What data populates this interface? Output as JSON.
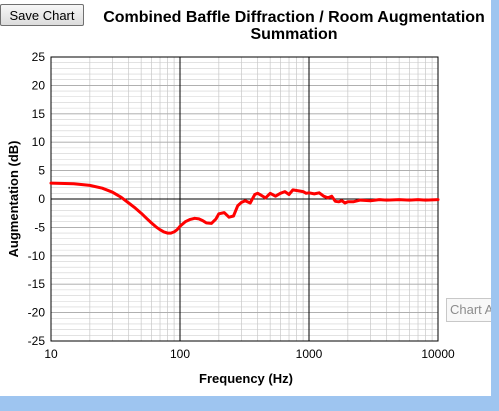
{
  "toolbar": {
    "save_label": "Save Chart"
  },
  "tooltip": {
    "text": "Chart A"
  },
  "chart_data": {
    "type": "line",
    "title_lines": [
      "Combined Baffle Diffraction / Room Augmentation",
      "Summation"
    ],
    "xlabel": "Frequency (Hz)",
    "ylabel": "Augmentation (dB)",
    "xscale": "log",
    "xlim": [
      10,
      10000
    ],
    "ylim": [
      -25,
      25
    ],
    "grid": true,
    "x_ticks": [
      "10",
      "100",
      "1000",
      "10000"
    ],
    "y_ticks": [
      "25",
      "20",
      "15",
      "10",
      "5",
      "0",
      "-5",
      "-10",
      "-15",
      "-20",
      "-25"
    ],
    "series": [
      {
        "color": "#ff0000",
        "x": [
          10,
          15,
          20,
          25,
          30,
          35,
          40,
          45,
          50,
          55,
          60,
          65,
          70,
          75,
          80,
          85,
          90,
          95,
          100,
          110,
          120,
          130,
          140,
          150,
          160,
          175,
          190,
          200,
          220,
          240,
          260,
          280,
          300,
          320,
          350,
          380,
          400,
          430,
          460,
          500,
          550,
          600,
          650,
          700,
          750,
          800,
          900,
          950,
          1000,
          1100,
          1200,
          1300,
          1400,
          1500,
          1600,
          1700,
          1800,
          1900,
          2000,
          2200,
          2500,
          3000,
          3500,
          4000,
          5000,
          6000,
          7000,
          8000,
          10000
        ],
        "y": [
          2.8,
          2.7,
          2.4,
          1.9,
          1.2,
          0.3,
          -0.7,
          -1.6,
          -2.5,
          -3.4,
          -4.2,
          -4.9,
          -5.4,
          -5.8,
          -6.0,
          -6.0,
          -5.8,
          -5.4,
          -4.8,
          -4.0,
          -3.6,
          -3.4,
          -3.5,
          -3.8,
          -4.2,
          -4.3,
          -3.5,
          -2.6,
          -2.4,
          -3.2,
          -3.0,
          -1.2,
          -0.6,
          -0.3,
          -0.7,
          0.8,
          1.0,
          0.6,
          0.2,
          1.0,
          0.5,
          1.0,
          1.3,
          0.8,
          1.6,
          1.5,
          1.3,
          1.0,
          1.1,
          0.9,
          1.1,
          0.5,
          0.2,
          0.5,
          -0.4,
          -0.5,
          -0.3,
          -0.7,
          -0.5,
          -0.5,
          -0.2,
          -0.3,
          -0.1,
          -0.2,
          -0.1,
          -0.2,
          -0.1,
          -0.2,
          -0.1
        ]
      }
    ]
  }
}
